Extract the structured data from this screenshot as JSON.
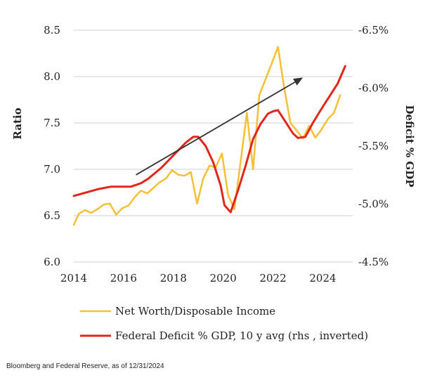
{
  "chart_data": {
    "type": "line",
    "x_ticks": [
      "2014",
      "2016",
      "2018",
      "2020",
      "2022",
      "2024"
    ],
    "xlim": [
      2014,
      2025.2
    ],
    "ylabel": "Ratio",
    "ylim": [
      6.0,
      8.5
    ],
    "y_ticks": [
      "6.0",
      "6.5",
      "7.0",
      "7.5",
      "8.0",
      "8.5"
    ],
    "y2label": "Deficit % GDP",
    "y2_inverted": true,
    "y2lim": [
      -4.5,
      -6.5
    ],
    "y2_ticks": [
      "-4.5%",
      "-5.0%",
      "-5.5%",
      "-6.0%",
      "-6.5%"
    ],
    "grid": "horizontal",
    "legend_position": "bottom",
    "colors": {
      "net_worth": "#f7bf36",
      "deficit": "#e3261c",
      "arrow": "#333333"
    },
    "series": [
      {
        "name": "Net Worth/Disposable Income",
        "axis": "left",
        "x": [
          2014.0,
          2014.2,
          2014.45,
          2014.7,
          2014.95,
          2015.2,
          2015.45,
          2015.7,
          2015.95,
          2016.2,
          2016.45,
          2016.7,
          2016.95,
          2017.2,
          2017.45,
          2017.7,
          2017.95,
          2018.2,
          2018.45,
          2018.7,
          2018.95,
          2019.2,
          2019.45,
          2019.7,
          2019.95,
          2020.2,
          2020.45,
          2020.7,
          2020.95,
          2021.2,
          2021.45,
          2021.7,
          2021.95,
          2022.2,
          2022.45,
          2022.7,
          2022.95,
          2023.2,
          2023.45,
          2023.7,
          2023.95,
          2024.2,
          2024.45,
          2024.7
        ],
        "y": [
          6.4,
          6.52,
          6.56,
          6.53,
          6.57,
          6.62,
          6.63,
          6.51,
          6.58,
          6.61,
          6.7,
          6.77,
          6.74,
          6.8,
          6.86,
          6.9,
          6.99,
          6.94,
          6.93,
          6.97,
          6.63,
          6.9,
          7.04,
          7.02,
          7.17,
          6.72,
          6.57,
          7.08,
          7.61,
          7.0,
          7.8,
          7.97,
          8.14,
          8.32,
          7.88,
          7.5,
          7.42,
          7.33,
          7.47,
          7.34,
          7.43,
          7.54,
          7.61,
          7.8
        ]
      },
      {
        "name": "Federal Deficit % GDP, 10 y avg (rhs , inverted)",
        "axis": "right",
        "x": [
          2014.0,
          2014.5,
          2015.0,
          2015.5,
          2016.0,
          2016.3,
          2016.7,
          2017.0,
          2017.5,
          2018.0,
          2018.5,
          2018.8,
          2019.0,
          2019.3,
          2019.6,
          2019.9,
          2020.05,
          2020.3,
          2020.6,
          2020.9,
          2021.2,
          2021.5,
          2021.8,
          2022.0,
          2022.2,
          2022.5,
          2022.8,
          2023.0,
          2023.3,
          2023.6,
          2024.0,
          2024.3,
          2024.6,
          2024.9
        ],
        "y": [
          -5.07,
          -5.1,
          -5.13,
          -5.15,
          -5.15,
          -5.15,
          -5.18,
          -5.22,
          -5.31,
          -5.42,
          -5.53,
          -5.58,
          -5.58,
          -5.5,
          -5.36,
          -5.16,
          -4.99,
          -4.93,
          -5.12,
          -5.33,
          -5.56,
          -5.69,
          -5.78,
          -5.8,
          -5.81,
          -5.71,
          -5.61,
          -5.57,
          -5.58,
          -5.7,
          -5.84,
          -5.94,
          -6.04,
          -6.19
        ]
      }
    ],
    "annotations": [
      {
        "type": "trend-arrow",
        "from": [
          2016.5,
          6.94
        ],
        "to": [
          2023.2,
          7.99
        ]
      }
    ]
  },
  "source": "Bloomberg and Federal Reserve, as of 12/31/2024"
}
